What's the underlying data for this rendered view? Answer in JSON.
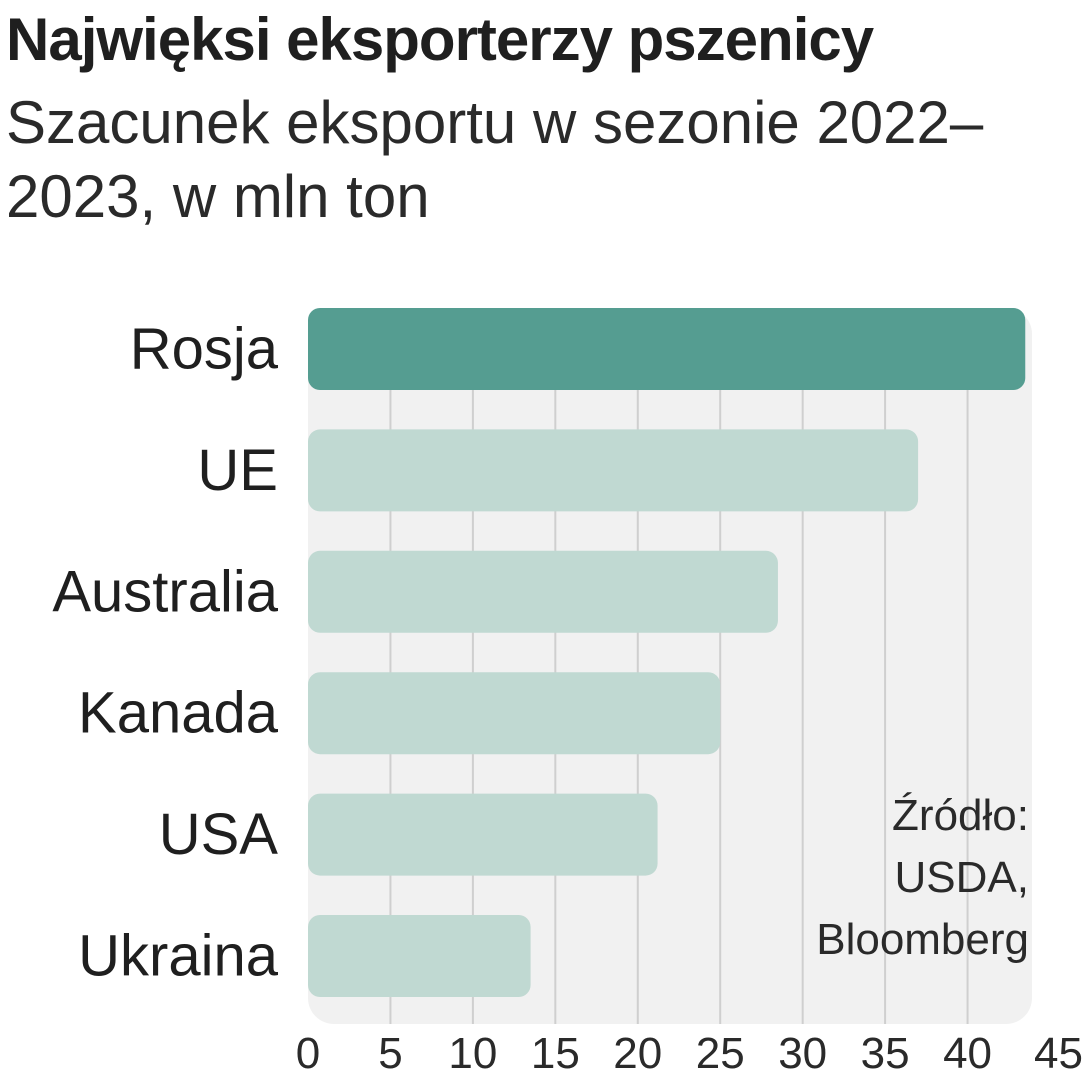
{
  "chart_data": {
    "type": "bar",
    "orientation": "horizontal",
    "title": "Najwięksi eksporterzy pszenicy",
    "subtitle": "Szacunek eksportu w sezonie 2022–2023, w mln ton",
    "categories": [
      "Rosja",
      "UE",
      "Australia",
      "Kanada",
      "USA",
      "Ukraina"
    ],
    "values": [
      43.5,
      37,
      28.5,
      25,
      21.2,
      13.5
    ],
    "xlim": [
      0,
      45
    ],
    "xticks": [
      "0",
      "5",
      "10",
      "15",
      "20",
      "25",
      "30",
      "35",
      "40",
      "45"
    ],
    "grid": true,
    "highlight_color": "#559d91",
    "bar_color": "#c0d9d2",
    "panel_color": "#f1f1f1",
    "source": {
      "label": "Źródło:",
      "line1": "USDA,",
      "line2": "Bloomberg"
    }
  }
}
